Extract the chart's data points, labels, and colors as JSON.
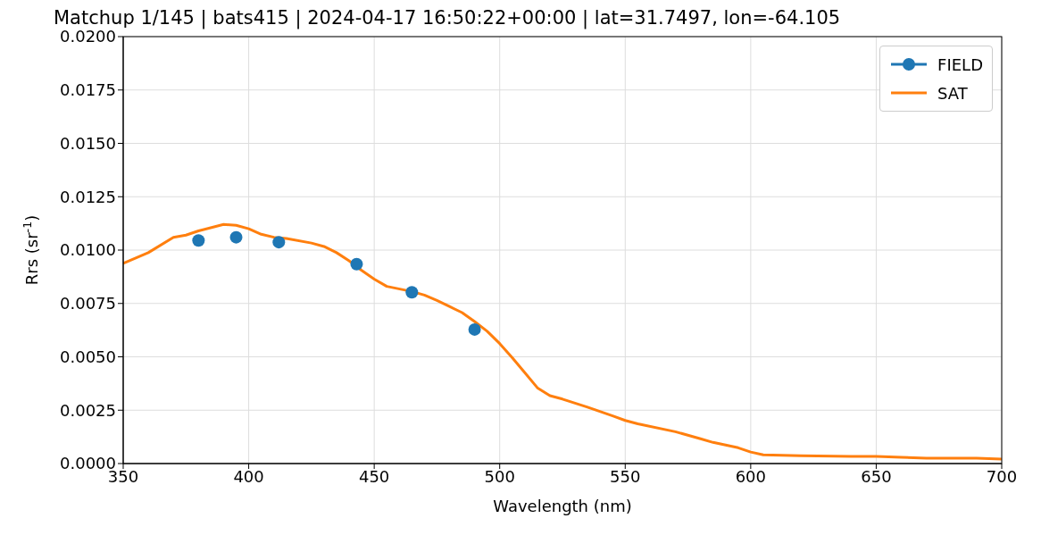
{
  "chart_data": {
    "type": "line",
    "title": "Matchup 1/145 | bats415 | 2024-04-17 16:50:22+00:00 | lat=31.7497, lon=-64.105",
    "xlabel": "Wavelength (nm)",
    "ylabel": "Rrs (sr$^{-1}$)",
    "series": [
      {
        "name": "FIELD",
        "type": "scatter",
        "color": "#1f77b4",
        "marker": "circle",
        "x": [
          380,
          395,
          412,
          443,
          465,
          490
        ],
        "values": [
          0.01045,
          0.0106,
          0.01037,
          0.00934,
          0.00802,
          0.00628
        ]
      },
      {
        "name": "SAT",
        "color": "#ff7f0e",
        "x": [
          350,
          360,
          370,
          375,
          380,
          390,
          395,
          400,
          405,
          410,
          415,
          425,
          430,
          435,
          440,
          445,
          450,
          455,
          465,
          470,
          475,
          480,
          485,
          490,
          495,
          500,
          505,
          510,
          515,
          520,
          525,
          535,
          545,
          550,
          555,
          570,
          580,
          585,
          595,
          600,
          605,
          620,
          640,
          650,
          660,
          670,
          680,
          690,
          700
        ],
        "values": [
          0.00938,
          0.00988,
          0.0106,
          0.0107,
          0.0109,
          0.0112,
          0.01116,
          0.011,
          0.01074,
          0.0106,
          0.01054,
          0.01033,
          0.01017,
          0.00988,
          0.0095,
          0.00905,
          0.00864,
          0.0083,
          0.00806,
          0.00789,
          0.00764,
          0.00736,
          0.00707,
          0.00665,
          0.0062,
          0.00562,
          0.00496,
          0.00426,
          0.00355,
          0.00318,
          0.00302,
          0.00264,
          0.00223,
          0.00202,
          0.00186,
          0.00149,
          0.00116,
          0.00099,
          0.00074,
          0.00054,
          0.00041,
          0.00037,
          0.00033,
          0.00033,
          0.00029,
          0.00025,
          0.00025,
          0.00025,
          0.00021
        ]
      }
    ],
    "xlim": [
      350,
      700
    ],
    "xticks": [
      350,
      400,
      450,
      500,
      550,
      600,
      650,
      700
    ],
    "ylim": [
      0,
      0.02
    ],
    "yticks": [
      {
        "value": 0,
        "label": "0.0000"
      },
      {
        "value": 0.0025,
        "label": "0.0025"
      },
      {
        "value": 0.005,
        "label": "0.0050"
      },
      {
        "value": 0.0075,
        "label": "0.0075"
      },
      {
        "value": 0.01,
        "label": "0.0100"
      },
      {
        "value": 0.0125,
        "label": "0.0125"
      },
      {
        "value": 0.015,
        "label": "0.0150"
      },
      {
        "value": 0.0175,
        "label": "0.0175"
      },
      {
        "value": 0.02,
        "label": "0.0200"
      }
    ],
    "grid": true,
    "legend": "top right"
  }
}
